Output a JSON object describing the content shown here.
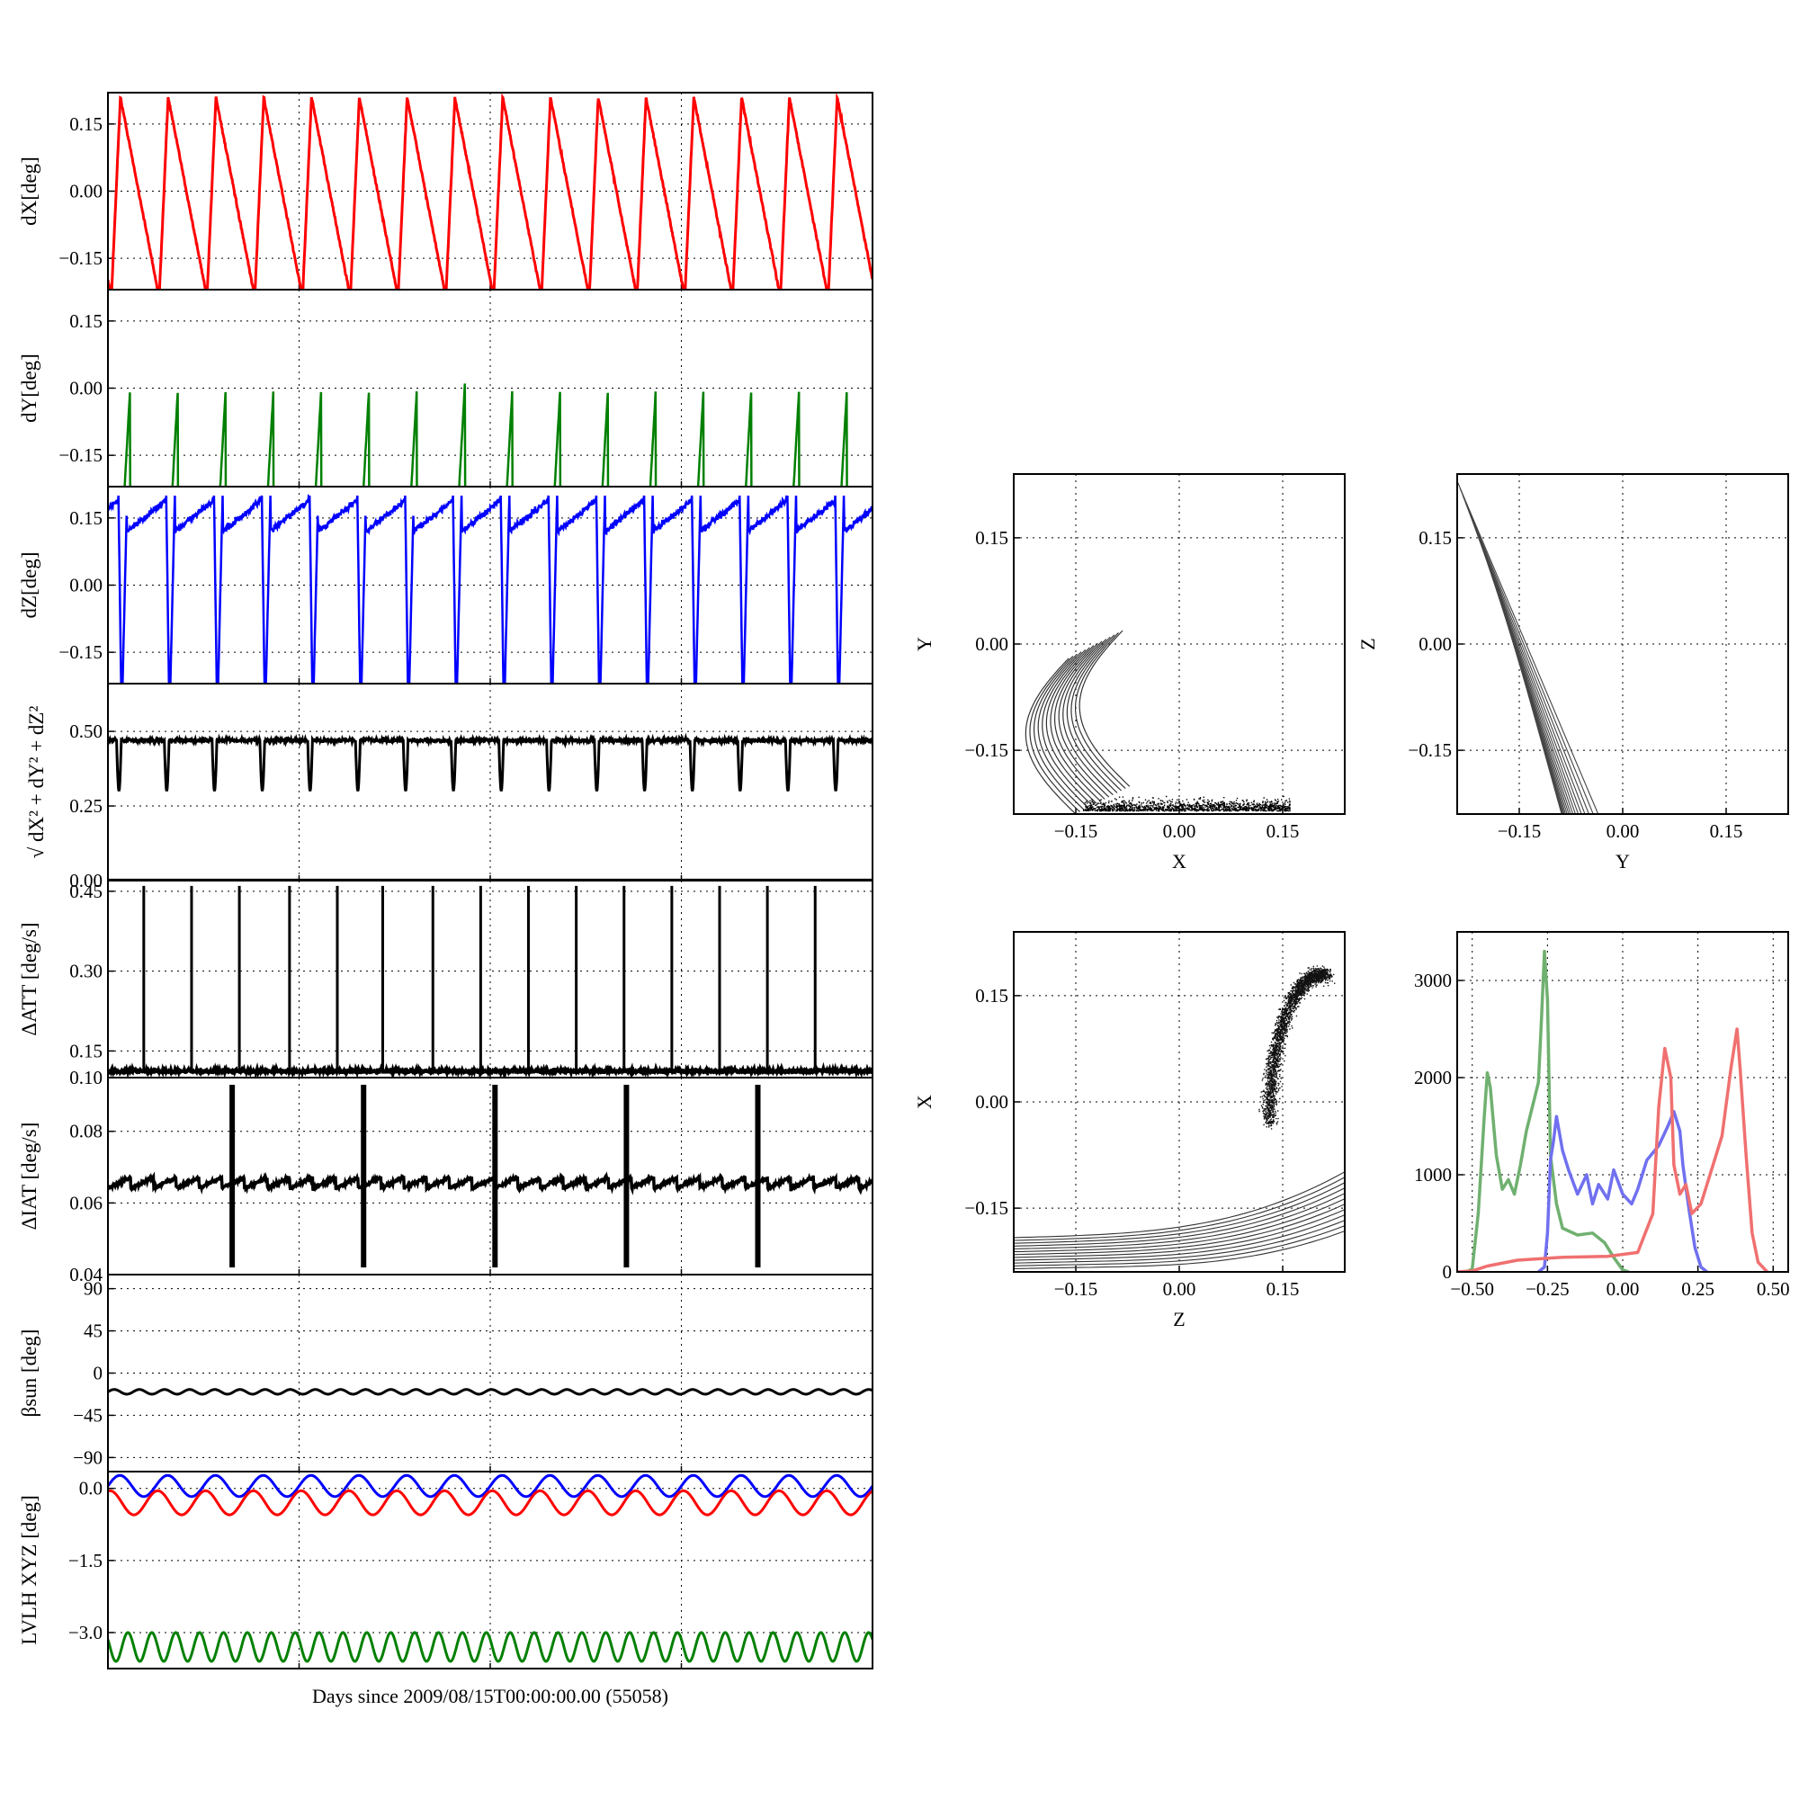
{
  "figure": {
    "xlabel": "Days since 2009/08/15T00:00:00.00 (55058)",
    "colors": {
      "red": "#ff0000",
      "green": "#008000",
      "blue": "#0000ff",
      "black": "#000000",
      "hist_red": "#f07070",
      "hist_green": "#70b070",
      "hist_blue": "#7070f0"
    }
  },
  "chart_data": [
    {
      "id": "dx",
      "type": "line",
      "ylabel": "dX[deg]",
      "ylim": [
        -0.22,
        0.22
      ],
      "yticks": [
        -0.15,
        0.0,
        0.15
      ],
      "ytick_labels": [
        "−0.15",
        "0.00",
        "0.15"
      ],
      "xlim": [
        0,
        16
      ],
      "xticks": [
        0,
        4,
        8,
        12,
        16
      ],
      "grid": true,
      "color": "#ff0000",
      "cycles": 16,
      "waveform": "sawtooth",
      "min": -0.22,
      "max": 0.21
    },
    {
      "id": "dy",
      "type": "line",
      "ylabel": "dY[deg]",
      "ylim": [
        -0.22,
        0.22
      ],
      "yticks": [
        -0.15,
        0.0,
        0.15
      ],
      "ytick_labels": [
        "−0.15",
        "0.00",
        "0.15"
      ],
      "xlim": [
        0,
        16
      ],
      "grid": true,
      "color": "#008000",
      "cycles": 16,
      "waveform": "ramp",
      "min": -0.22,
      "max": 0.01
    },
    {
      "id": "dz",
      "type": "line",
      "ylabel": "dZ[deg]",
      "ylim": [
        -0.22,
        0.22
      ],
      "yticks": [
        -0.15,
        0.0,
        0.15
      ],
      "ytick_labels": [
        "−0.15",
        "0.00",
        "0.15"
      ],
      "xlim": [
        0,
        16
      ],
      "grid": true,
      "color": "#0000ff",
      "cycles": 16,
      "waveform": "drop",
      "min": -0.22,
      "max": 0.2
    },
    {
      "id": "dr",
      "type": "line",
      "ylabel": "√ dX² + dY² + dZ²",
      "ylim": [
        0,
        0.66
      ],
      "yticks": [
        0.0,
        0.25,
        0.5
      ],
      "ytick_labels": [
        "0.00",
        "0.25",
        "0.50"
      ],
      "xlim": [
        0,
        16
      ],
      "grid": true,
      "color": "#000000",
      "cycles": 16,
      "base": 0.47,
      "dip": 0.3
    },
    {
      "id": "datt",
      "type": "line",
      "ylabel": "ΔATT [deg/s]",
      "ylim": [
        0.1,
        0.47
      ],
      "yticks": [
        0.1,
        0.15,
        0.3,
        0.45
      ],
      "ytick_labels": [
        "0.10",
        "0.15",
        "0.30",
        "0.45"
      ],
      "xlim": [
        0,
        16
      ],
      "grid": true,
      "color": "#000000",
      "spikes_x": [
        0.75,
        1.75,
        2.75,
        3.8,
        4.8,
        5.75,
        6.8,
        7.8,
        8.8,
        9.8,
        10.8,
        11.8,
        12.8,
        13.8,
        14.8
      ],
      "spike_height": 0.46,
      "base": 0.11
    },
    {
      "id": "diat",
      "type": "line",
      "ylabel": "ΔIAT [deg/s]",
      "ylim": [
        0.04,
        0.095
      ],
      "yticks": [
        0.04,
        0.06,
        0.08
      ],
      "ytick_labels": [
        "0.04",
        "0.06",
        "0.08"
      ],
      "xlim": [
        0,
        16
      ],
      "grid": true,
      "color": "#000000",
      "spikes_x": [
        2.6,
        5.35,
        8.1,
        10.85,
        13.6
      ],
      "spike_low": 0.042,
      "spike_high": 0.093,
      "base": 0.065,
      "ripple": 0.003
    },
    {
      "id": "beta",
      "type": "line",
      "ylabel": "βsun [deg]",
      "ylim": [
        -105,
        105
      ],
      "yticks": [
        -90,
        -45,
        0,
        45,
        90
      ],
      "ytick_labels": [
        "−90",
        "−45",
        "0",
        "45",
        "90"
      ],
      "xlim": [
        0,
        16
      ],
      "grid": true,
      "color": "#000000",
      "base": -20,
      "ripple": 2.5
    },
    {
      "id": "lvlh",
      "type": "line",
      "ylabel": "LVLH XYZ [deg]",
      "ylim": [
        -3.75,
        0.35
      ],
      "yticks": [
        -3.0,
        -1.5,
        0.0
      ],
      "ytick_labels": [
        "−3.0",
        "−1.5",
        "0.0"
      ],
      "xlim": [
        0,
        16
      ],
      "grid": true,
      "series": [
        {
          "color": "#0000ff",
          "center": 0.05,
          "amp": 0.22
        },
        {
          "color": "#ff0000",
          "center": -0.3,
          "amp": 0.25
        },
        {
          "color": "#008000",
          "center": -3.3,
          "amp": 0.3
        }
      ]
    },
    {
      "id": "xy",
      "type": "scatter",
      "xlabel": "X",
      "ylabel": "Y",
      "xlim": [
        -0.24,
        0.24
      ],
      "ylim": [
        -0.24,
        0.24
      ],
      "ticks": [
        -0.15,
        0.0,
        0.15
      ],
      "tick_labels": [
        "−0.15",
        "0.00",
        "0.15"
      ],
      "grid": true
    },
    {
      "id": "yz",
      "type": "scatter",
      "xlabel": "Y",
      "ylabel": "Z",
      "xlim": [
        -0.24,
        0.24
      ],
      "ylim": [
        -0.24,
        0.24
      ],
      "ticks": [
        -0.15,
        0.0,
        0.15
      ],
      "tick_labels": [
        "−0.15",
        "0.00",
        "0.15"
      ],
      "grid": true
    },
    {
      "id": "zx",
      "type": "scatter",
      "xlabel": "Z",
      "ylabel": "X",
      "xlim": [
        -0.24,
        0.24
      ],
      "ylim": [
        -0.24,
        0.24
      ],
      "ticks": [
        -0.15,
        0.0,
        0.15
      ],
      "tick_labels": [
        "−0.15",
        "0.00",
        "0.15"
      ],
      "grid": true
    },
    {
      "id": "hist",
      "type": "line",
      "xlim": [
        -0.55,
        0.55
      ],
      "ylim": [
        0,
        3500
      ],
      "xticks": [
        -0.5,
        -0.25,
        0.0,
        0.25,
        0.5
      ],
      "xtick_labels": [
        "−0.50",
        "−0.25",
        "0.00",
        "0.25",
        "0.50"
      ],
      "yticks": [
        0,
        1000,
        2000,
        3000
      ],
      "ytick_labels": [
        "0",
        "1000",
        "2000",
        "3000"
      ],
      "grid": true,
      "series": [
        {
          "color": "#70b070",
          "points": [
            [
              -0.52,
              0
            ],
            [
              -0.5,
              30
            ],
            [
              -0.48,
              600
            ],
            [
              -0.46,
              1600
            ],
            [
              -0.45,
              2050
            ],
            [
              -0.44,
              1900
            ],
            [
              -0.42,
              1200
            ],
            [
              -0.4,
              850
            ],
            [
              -0.38,
              950
            ],
            [
              -0.36,
              800
            ],
            [
              -0.34,
              1100
            ],
            [
              -0.32,
              1450
            ],
            [
              -0.3,
              1700
            ],
            [
              -0.28,
              1950
            ],
            [
              -0.27,
              2600
            ],
            [
              -0.26,
              3300
            ],
            [
              -0.25,
              2800
            ],
            [
              -0.24,
              1200
            ],
            [
              -0.22,
              700
            ],
            [
              -0.2,
              450
            ],
            [
              -0.15,
              380
            ],
            [
              -0.1,
              400
            ],
            [
              -0.06,
              300
            ],
            [
              -0.03,
              150
            ],
            [
              0.0,
              20
            ],
            [
              0.02,
              0
            ]
          ]
        },
        {
          "color": "#7070f0",
          "points": [
            [
              -0.28,
              0
            ],
            [
              -0.26,
              50
            ],
            [
              -0.25,
              400
            ],
            [
              -0.24,
              1150
            ],
            [
              -0.23,
              1350
            ],
            [
              -0.22,
              1600
            ],
            [
              -0.2,
              1250
            ],
            [
              -0.18,
              1050
            ],
            [
              -0.15,
              800
            ],
            [
              -0.12,
              1000
            ],
            [
              -0.1,
              700
            ],
            [
              -0.08,
              900
            ],
            [
              -0.05,
              750
            ],
            [
              -0.03,
              1050
            ],
            [
              0.0,
              800
            ],
            [
              0.03,
              700
            ],
            [
              0.05,
              850
            ],
            [
              0.08,
              1150
            ],
            [
              0.12,
              1300
            ],
            [
              0.15,
              1500
            ],
            [
              0.17,
              1650
            ],
            [
              0.19,
              1450
            ],
            [
              0.2,
              1100
            ],
            [
              0.22,
              650
            ],
            [
              0.24,
              250
            ],
            [
              0.26,
              50
            ],
            [
              0.28,
              0
            ]
          ]
        },
        {
          "color": "#f07070",
          "points": [
            [
              -0.55,
              0
            ],
            [
              -0.5,
              10
            ],
            [
              -0.45,
              60
            ],
            [
              -0.35,
              120
            ],
            [
              -0.2,
              150
            ],
            [
              -0.05,
              160
            ],
            [
              0.05,
              200
            ],
            [
              0.1,
              600
            ],
            [
              0.12,
              1700
            ],
            [
              0.14,
              2300
            ],
            [
              0.16,
              2000
            ],
            [
              0.17,
              1100
            ],
            [
              0.19,
              800
            ],
            [
              0.21,
              900
            ],
            [
              0.23,
              600
            ],
            [
              0.26,
              700
            ],
            [
              0.3,
              1100
            ],
            [
              0.33,
              1400
            ],
            [
              0.36,
              2100
            ],
            [
              0.38,
              2500
            ],
            [
              0.39,
              2100
            ],
            [
              0.41,
              1200
            ],
            [
              0.43,
              400
            ],
            [
              0.45,
              100
            ],
            [
              0.48,
              0
            ]
          ]
        }
      ]
    }
  ]
}
